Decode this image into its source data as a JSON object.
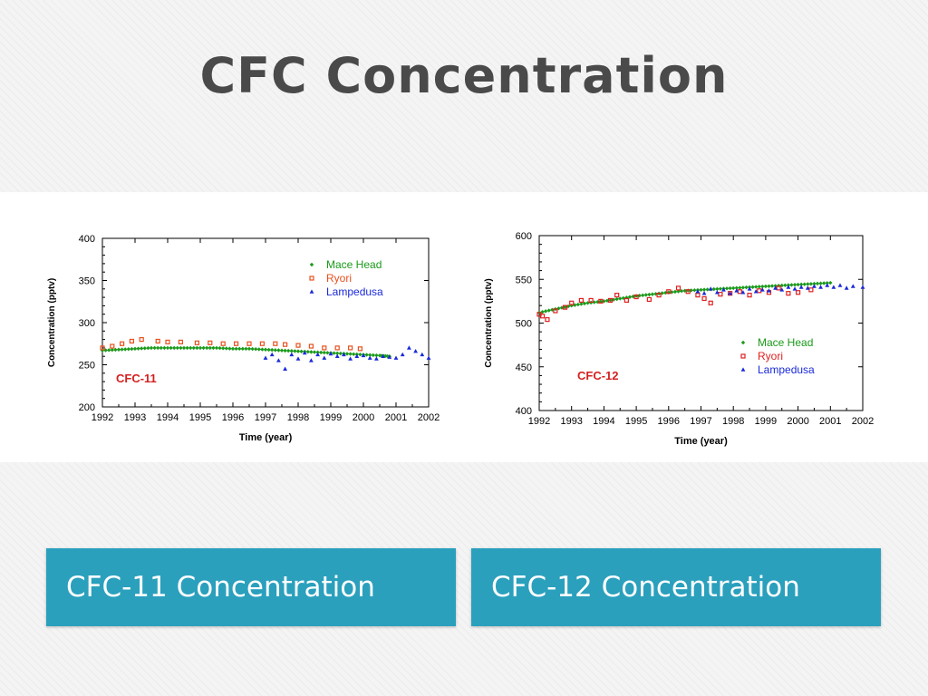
{
  "slide": {
    "title": "CFC Concentration",
    "captions": [
      "CFC-11 Concentration",
      "CFC-12 Concentration"
    ]
  },
  "colors": {
    "caption_bg": "#2aa0bd",
    "mace_head": "#1a9a1a",
    "ryori": "#e8501e",
    "ryori_cfc12": "#e02020",
    "lampedusa": "#1a2ad8",
    "inset_label": "#d42020"
  },
  "chart_data": [
    {
      "type": "scatter",
      "title": "",
      "inset_label": "CFC-11",
      "xlabel": "Time (year)",
      "ylabel": "Concentration (pptv)",
      "xlim": [
        1992,
        2002
      ],
      "ylim": [
        200,
        400
      ],
      "xticks": [
        1992,
        1993,
        1994,
        1995,
        1996,
        1997,
        1998,
        1999,
        2000,
        2001,
        2002
      ],
      "yticks": [
        200,
        250,
        300,
        350,
        400
      ],
      "grid": false,
      "legend_position": "top-right",
      "series": [
        {
          "name": "Mace Head",
          "marker": "diamond",
          "color": "#1a9a1a",
          "points": [
            [
              1992.0,
              267
            ],
            [
              1992.5,
              268
            ],
            [
              1993.0,
              269
            ],
            [
              1993.5,
              270
            ],
            [
              1994.0,
              270
            ],
            [
              1994.5,
              270
            ],
            [
              1995.0,
              270
            ],
            [
              1995.5,
              270
            ],
            [
              1996.0,
              269
            ],
            [
              1996.5,
              269
            ],
            [
              1997.0,
              268
            ],
            [
              1997.5,
              267
            ],
            [
              1998.0,
              266
            ],
            [
              1998.5,
              265
            ],
            [
              1999.0,
              264
            ],
            [
              1999.5,
              263
            ],
            [
              2000.0,
              262
            ],
            [
              2000.5,
              261
            ],
            [
              2000.8,
              260
            ]
          ]
        },
        {
          "name": "Ryori",
          "marker": "square",
          "color": "#e8501e",
          "points": [
            [
              1992.0,
              270
            ],
            [
              1992.3,
              272
            ],
            [
              1992.6,
              275
            ],
            [
              1992.9,
              278
            ],
            [
              1993.2,
              280
            ],
            [
              1993.7,
              278
            ],
            [
              1994.0,
              277
            ],
            [
              1994.4,
              277
            ],
            [
              1994.9,
              276
            ],
            [
              1995.3,
              276
            ],
            [
              1995.7,
              275
            ],
            [
              1996.1,
              275
            ],
            [
              1996.5,
              275
            ],
            [
              1996.9,
              275
            ],
            [
              1997.3,
              275
            ],
            [
              1997.6,
              274
            ],
            [
              1998.0,
              273
            ],
            [
              1998.4,
              272
            ],
            [
              1998.8,
              270
            ],
            [
              1999.2,
              270
            ],
            [
              1999.6,
              270
            ],
            [
              1999.9,
              269
            ]
          ]
        },
        {
          "name": "Lampedusa",
          "marker": "triangle",
          "color": "#1a2ad8",
          "points": [
            [
              1997.0,
              258
            ],
            [
              1997.2,
              262
            ],
            [
              1997.4,
              255
            ],
            [
              1997.6,
              245
            ],
            [
              1997.8,
              262
            ],
            [
              1998.0,
              257
            ],
            [
              1998.2,
              264
            ],
            [
              1998.4,
              255
            ],
            [
              1998.6,
              262
            ],
            [
              1998.8,
              258
            ],
            [
              1999.0,
              263
            ],
            [
              1999.2,
              260
            ],
            [
              1999.4,
              262
            ],
            [
              1999.6,
              257
            ],
            [
              1999.8,
              260
            ],
            [
              2000.0,
              261
            ],
            [
              2000.2,
              258
            ],
            [
              2000.4,
              257
            ],
            [
              2000.6,
              260
            ],
            [
              2000.8,
              259
            ],
            [
              2001.0,
              258
            ],
            [
              2001.2,
              262
            ],
            [
              2001.4,
              270
            ],
            [
              2001.6,
              266
            ],
            [
              2001.8,
              262
            ],
            [
              2002.0,
              258
            ]
          ]
        }
      ]
    },
    {
      "type": "scatter",
      "title": "",
      "inset_label": "CFC-12",
      "xlabel": "Time (year)",
      "ylabel": "Concentration (pptv)",
      "xlim": [
        1992,
        2002
      ],
      "ylim": [
        400,
        600
      ],
      "xticks": [
        1992,
        1993,
        1994,
        1995,
        1996,
        1997,
        1998,
        1999,
        2000,
        2001,
        2002
      ],
      "yticks": [
        400,
        450,
        500,
        550,
        600
      ],
      "grid": false,
      "legend_position": "bottom-right",
      "series": [
        {
          "name": "Mace Head",
          "marker": "diamond",
          "color": "#1a9a1a",
          "points": [
            [
              1992.0,
              512
            ],
            [
              1992.5,
              516
            ],
            [
              1993.0,
              520
            ],
            [
              1993.5,
              523
            ],
            [
              1994.0,
              525
            ],
            [
              1994.5,
              528
            ],
            [
              1995.0,
              531
            ],
            [
              1995.5,
              533
            ],
            [
              1996.0,
              535
            ],
            [
              1996.5,
              537
            ],
            [
              1997.0,
              538
            ],
            [
              1997.5,
              539
            ],
            [
              1998.0,
              540
            ],
            [
              1998.5,
              541
            ],
            [
              1999.0,
              542
            ],
            [
              1999.5,
              543
            ],
            [
              2000.0,
              544
            ],
            [
              2000.5,
              545
            ],
            [
              2001.0,
              546
            ]
          ]
        },
        {
          "name": "Ryori",
          "marker": "square",
          "color": "#e02020",
          "points": [
            [
              1992.0,
              510
            ],
            [
              1992.1,
              508
            ],
            [
              1992.25,
              504
            ],
            [
              1992.5,
              514
            ],
            [
              1992.8,
              518
            ],
            [
              1993.0,
              523
            ],
            [
              1993.3,
              526
            ],
            [
              1993.6,
              526
            ],
            [
              1993.9,
              525
            ],
            [
              1994.2,
              526
            ],
            [
              1994.4,
              532
            ],
            [
              1994.7,
              526
            ],
            [
              1995.0,
              530
            ],
            [
              1995.4,
              527
            ],
            [
              1995.7,
              532
            ],
            [
              1996.0,
              536
            ],
            [
              1996.3,
              540
            ],
            [
              1996.6,
              536
            ],
            [
              1996.9,
              532
            ],
            [
              1997.1,
              528
            ],
            [
              1997.3,
              523
            ],
            [
              1997.6,
              533
            ],
            [
              1997.9,
              534
            ],
            [
              1998.2,
              536
            ],
            [
              1998.5,
              532
            ],
            [
              1998.8,
              537
            ],
            [
              1999.1,
              535
            ],
            [
              1999.4,
              540
            ],
            [
              1999.7,
              534
            ],
            [
              2000.0,
              535
            ],
            [
              2000.4,
              538
            ]
          ]
        },
        {
          "name": "Lampedusa",
          "marker": "triangle",
          "color": "#1a2ad8",
          "points": [
            [
              1996.9,
              536
            ],
            [
              1997.1,
              534
            ],
            [
              1997.3,
              539
            ],
            [
              1997.5,
              535
            ],
            [
              1997.7,
              538
            ],
            [
              1997.9,
              534
            ],
            [
              1998.1,
              537
            ],
            [
              1998.3,
              535
            ],
            [
              1998.5,
              539
            ],
            [
              1998.7,
              536
            ],
            [
              1998.9,
              538
            ],
            [
              1999.1,
              537
            ],
            [
              1999.3,
              540
            ],
            [
              1999.5,
              538
            ],
            [
              1999.7,
              541
            ],
            [
              1999.9,
              539
            ],
            [
              2000.1,
              541
            ],
            [
              2000.3,
              540
            ],
            [
              2000.5,
              542
            ],
            [
              2000.7,
              541
            ],
            [
              2000.9,
              543
            ],
            [
              2001.1,
              541
            ],
            [
              2001.3,
              543
            ],
            [
              2001.5,
              540
            ],
            [
              2001.7,
              542
            ],
            [
              2002.0,
              541
            ]
          ]
        }
      ]
    }
  ]
}
